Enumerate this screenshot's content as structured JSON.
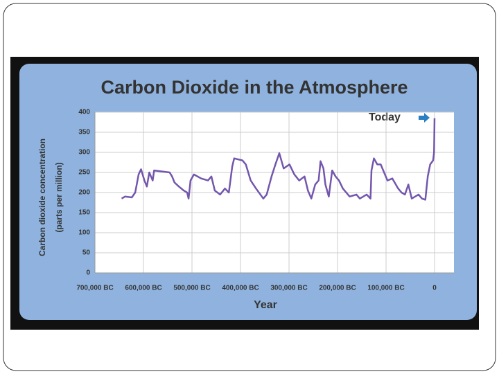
{
  "chart_data": {
    "type": "line",
    "title": "Carbon Dioxide in the Atmosphere",
    "xlabel": "Year",
    "ylabel": [
      "Carbon dioxide concentration",
      "(parts per million)"
    ],
    "annotation": "Today",
    "color": "#7356ad",
    "grid": true,
    "xlim": [
      -700000,
      40000
    ],
    "ylim": [
      0,
      400
    ],
    "yticks": [
      0,
      50,
      100,
      150,
      200,
      250,
      300,
      350,
      400
    ],
    "xticks": [
      {
        "value": -700000,
        "label": "700,000 BC"
      },
      {
        "value": -600000,
        "label": "600,000 BC"
      },
      {
        "value": -500000,
        "label": "500,000 BC"
      },
      {
        "value": -400000,
        "label": "400,000 BC"
      },
      {
        "value": -300000,
        "label": "300,000 BC"
      },
      {
        "value": -200000,
        "label": "200,000 BC"
      },
      {
        "value": -100000,
        "label": "100,000 BC"
      },
      0
    ],
    "x": [
      -645000,
      -638000,
      -624000,
      -617000,
      -610000,
      -605000,
      -598000,
      -593000,
      -588000,
      -581000,
      -578000,
      -560000,
      -546000,
      -541000,
      -536000,
      -527000,
      -517000,
      -510000,
      -507000,
      -503000,
      -496000,
      -481000,
      -467000,
      -460000,
      -453000,
      -442000,
      -432000,
      -424000,
      -417000,
      -413000,
      -396000,
      -389000,
      -379000,
      -368000,
      -353000,
      -346000,
      -336000,
      -328000,
      -320000,
      -311000,
      -299000,
      -289000,
      -279000,
      -268000,
      -261000,
      -254000,
      -246000,
      -239000,
      -235000,
      -229000,
      -225000,
      -218000,
      -211000,
      -204000,
      -197000,
      -189000,
      -175000,
      -161000,
      -154000,
      -140000,
      -132000,
      -130000,
      -125000,
      -118000,
      -111000,
      -97000,
      -87000,
      -75000,
      -68000,
      -61000,
      -54000,
      -47000,
      -33000,
      -26000,
      -19000,
      -14000,
      -9000,
      -3000,
      -1000,
      0
    ],
    "values": [
      185,
      190,
      188,
      200,
      245,
      258,
      230,
      215,
      250,
      230,
      255,
      252,
      250,
      240,
      225,
      215,
      205,
      200,
      185,
      230,
      245,
      235,
      230,
      240,
      205,
      195,
      210,
      200,
      265,
      285,
      280,
      270,
      230,
      210,
      185,
      195,
      240,
      270,
      298,
      260,
      270,
      245,
      230,
      240,
      205,
      185,
      220,
      230,
      278,
      260,
      220,
      190,
      255,
      240,
      230,
      210,
      190,
      195,
      185,
      195,
      185,
      255,
      285,
      270,
      270,
      230,
      235,
      210,
      200,
      195,
      220,
      185,
      195,
      185,
      182,
      240,
      270,
      280,
      300,
      385
    ]
  }
}
